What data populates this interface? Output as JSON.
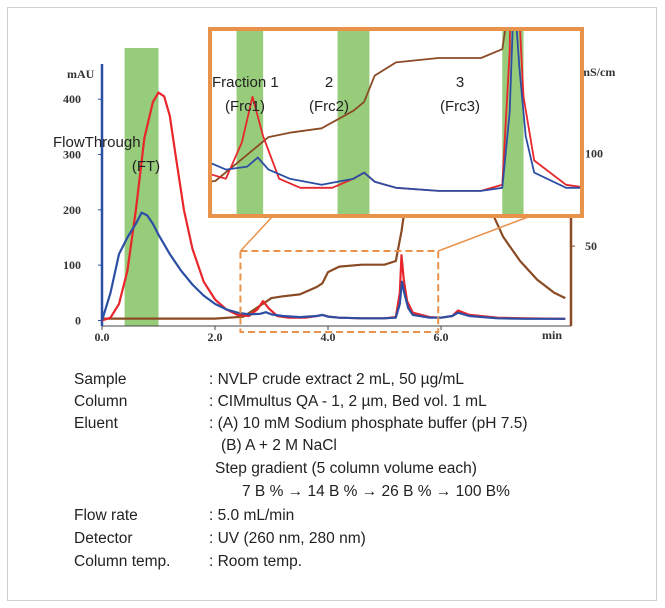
{
  "chart_data": {
    "type": "line",
    "xlabel": "min",
    "ylabel_left": "mAU",
    "ylabel_right": "mS/cm",
    "x_ticks": [
      "0.0",
      "2.0",
      "4.0",
      "6.0"
    ],
    "y_left_ticks": [
      "0",
      "100",
      "200",
      "300",
      "400"
    ],
    "y_right_ticks": [
      "50",
      "100"
    ],
    "xlim": [
      0,
      8.3
    ],
    "ylim_left": [
      -10,
      460
    ],
    "ylim_right": [
      7,
      147
    ],
    "fractions": [
      {
        "label": "FlowThrough",
        "sublabel": "(FT)",
        "x_range": [
          0.4,
          1.0
        ]
      },
      {
        "label": "Fraction 1",
        "sublabel": "(Frc1)"
      },
      {
        "label": "2",
        "sublabel": "(Frc2)"
      },
      {
        "label": "3",
        "sublabel": "(Frc3)"
      }
    ],
    "series": [
      {
        "color": "#e8262b",
        "axis": "left",
        "x": [
          0,
          0.15,
          0.3,
          0.45,
          0.6,
          0.75,
          0.9,
          1.0,
          1.1,
          1.2,
          1.3,
          1.45,
          1.6,
          1.8,
          2.0,
          2.2,
          2.4,
          2.6,
          2.75,
          2.85,
          2.95,
          3.1,
          3.3,
          3.6,
          3.8,
          3.9,
          4.0,
          4.2,
          4.6,
          5.0,
          5.2,
          5.27,
          5.3,
          5.34,
          5.4,
          5.5,
          5.8,
          6.0,
          6.2,
          6.3,
          6.5,
          7.0,
          7.5,
          8.2
        ],
        "y": [
          0,
          5,
          30,
          90,
          200,
          330,
          395,
          412,
          405,
          370,
          300,
          200,
          130,
          70,
          38,
          20,
          10,
          8,
          20,
          35,
          22,
          8,
          5,
          5,
          8,
          10,
          7,
          5,
          4,
          4,
          6,
          50,
          118,
          75,
          35,
          14,
          6,
          5,
          8,
          18,
          10,
          5,
          4,
          3
        ]
      },
      {
        "color": "#2c4fa3",
        "axis": "left",
        "x": [
          0,
          0.15,
          0.3,
          0.45,
          0.6,
          0.7,
          0.8,
          0.9,
          1.0,
          1.2,
          1.4,
          1.6,
          1.8,
          2.0,
          2.2,
          2.4,
          2.6,
          2.8,
          2.9,
          3.0,
          3.2,
          3.5,
          3.8,
          3.9,
          4.0,
          4.2,
          4.6,
          5.0,
          5.2,
          5.27,
          5.31,
          5.36,
          5.42,
          5.5,
          5.8,
          6.0,
          6.2,
          6.3,
          6.5,
          7.0,
          7.5,
          8.2
        ],
        "y": [
          0,
          50,
          120,
          150,
          175,
          195,
          190,
          175,
          155,
          120,
          90,
          65,
          45,
          30,
          20,
          14,
          11,
          12,
          15,
          11,
          8,
          6,
          8,
          10,
          7,
          5,
          4,
          4,
          5,
          30,
          70,
          45,
          22,
          10,
          5,
          5,
          8,
          14,
          8,
          4,
          3,
          3
        ]
      },
      {
        "color": "#8a4b24",
        "axis": "right",
        "x": [
          0,
          1.0,
          2.0,
          2.5,
          2.8,
          3.0,
          3.2,
          3.5,
          3.8,
          3.9,
          4.0,
          4.2,
          4.6,
          5.0,
          5.2,
          5.3,
          5.45,
          5.6,
          5.75,
          5.85,
          5.9,
          6.0,
          6.2,
          6.5,
          6.8,
          7.1,
          7.4,
          7.7,
          8.0,
          8.2
        ],
        "y": [
          11,
          11,
          11,
          12,
          18,
          22,
          23,
          24,
          28,
          30,
          36,
          39,
          40,
          40,
          42,
          58,
          90,
          125,
          140,
          145,
          145,
          140,
          125,
          100,
          75,
          55,
          42,
          32,
          25,
          22
        ]
      }
    ]
  },
  "conditions": {
    "sample": {
      "label": "Sample",
      "value": ": NVLP crude extract 2 mL, 50 µg/mL"
    },
    "column": {
      "label": "Column",
      "value": ": CIMmultus QA - 1, 2 µm, Bed vol. 1 mL"
    },
    "eluent": {
      "label": "Eluent",
      "value": ": (A) 10 mM Sodium phosphate buffer (pH 7.5)"
    },
    "eluent_b": "(B) A + 2 M NaCl",
    "gradient": "Step gradient (5 column volume each)",
    "gradient_steps": "7 B % → 14 B % → 26 B % → 100 B%",
    "flow_rate": {
      "label": "Flow rate",
      "value": ": 5.0 mL/min"
    },
    "detector": {
      "label": "Detector",
      "value": ": UV (260 nm, 280 nm)"
    },
    "column_temp": {
      "label": "Column temp.",
      "value": ": Room temp."
    }
  },
  "colors": {
    "fraction_band": "#7dbf5a",
    "inset_frame": "#e9924a",
    "left_axis": "#2c4fa3",
    "right_axis": "#8a4b24"
  }
}
